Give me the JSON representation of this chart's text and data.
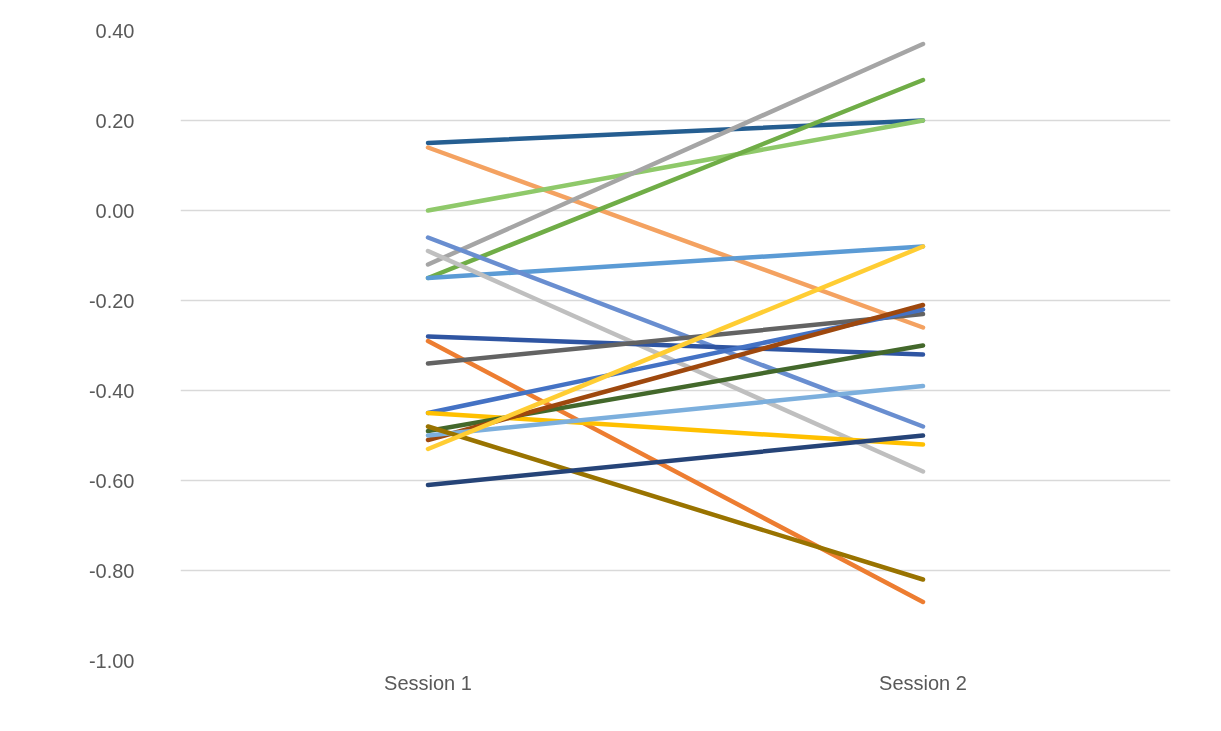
{
  "chart_data": {
    "type": "line",
    "categories": [
      "Session 1",
      "Session 2"
    ],
    "ylim": [
      -1.0,
      0.4
    ],
    "yticks": [
      {
        "value": -1.0,
        "label": "-1.00"
      },
      {
        "value": -0.8,
        "label": "-0.80"
      },
      {
        "value": -0.6,
        "label": "-0.60"
      },
      {
        "value": -0.4,
        "label": "-0.40"
      },
      {
        "value": -0.2,
        "label": "-0.20"
      },
      {
        "value": 0.0,
        "label": "0.00"
      },
      {
        "value": 0.2,
        "label": "0.20"
      },
      {
        "value": 0.4,
        "label": "0.40"
      }
    ],
    "grid": "y",
    "marker": "none",
    "line_style": "solid",
    "series": [
      {
        "color": "#255e91",
        "values": [
          0.15,
          0.2
        ]
      },
      {
        "color": "#f4a261",
        "values": [
          0.14,
          -0.26
        ]
      },
      {
        "color": "#8fc96a",
        "values": [
          0.0,
          0.2
        ]
      },
      {
        "color": "#a5a5a5",
        "values": [
          -0.12,
          0.37
        ]
      },
      {
        "color": "#70ad47",
        "values": [
          -0.15,
          0.29
        ]
      },
      {
        "color": "#5b9bd5",
        "values": [
          -0.15,
          -0.08
        ]
      },
      {
        "color": "#698ed0",
        "values": [
          -0.06,
          -0.48
        ]
      },
      {
        "color": "#bfbfbf",
        "values": [
          -0.09,
          -0.58
        ]
      },
      {
        "color": "#2f55a2",
        "values": [
          -0.28,
          -0.32
        ]
      },
      {
        "color": "#ed7d31",
        "values": [
          -0.29,
          -0.87
        ]
      },
      {
        "color": "#636363",
        "values": [
          -0.34,
          -0.23
        ]
      },
      {
        "color": "#4472c4",
        "values": [
          -0.45,
          -0.22
        ]
      },
      {
        "color": "#ffc000",
        "values": [
          -0.45,
          -0.52
        ]
      },
      {
        "color": "#43682b",
        "values": [
          -0.49,
          -0.3
        ]
      },
      {
        "color": "#9e480e",
        "values": [
          -0.51,
          -0.21
        ]
      },
      {
        "color": "#7cafdd",
        "values": [
          -0.5,
          -0.39
        ]
      },
      {
        "color": "#997300",
        "values": [
          -0.48,
          -0.82
        ]
      },
      {
        "color": "#ffcd33",
        "values": [
          -0.53,
          -0.08
        ]
      },
      {
        "color": "#264478",
        "values": [
          -0.61,
          -0.5
        ]
      }
    ]
  }
}
